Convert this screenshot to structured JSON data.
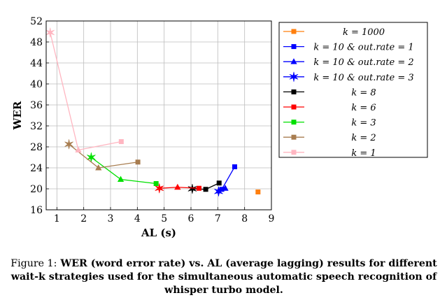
{
  "chart_data": {
    "type": "line",
    "xlabel": "AL (s)",
    "ylabel": "WER",
    "xlim": [
      0.6,
      9
    ],
    "ylim": [
      16,
      52
    ],
    "xticks": [
      1,
      2,
      3,
      4,
      5,
      6,
      7,
      8,
      9
    ],
    "yticks": [
      16,
      20,
      24,
      28,
      32,
      36,
      40,
      44,
      48,
      52
    ],
    "grid": true,
    "legend_position": "right-outside",
    "series": [
      {
        "name": "k = 1000",
        "color": "#ff7f0e",
        "marker": "square",
        "points": [
          [
            8.5,
            19.4
          ]
        ]
      },
      {
        "name": "k = 10 & out.rate = 1",
        "color": "#0000ff",
        "marker": "square",
        "points": [
          [
            7.63,
            24.2
          ],
          [
            7.15,
            19.9
          ]
        ]
      },
      {
        "name": "k = 10 & out.rate = 2",
        "color": "#0000ff",
        "marker": "triangle",
        "points": [
          [
            7.28,
            20.1
          ],
          [
            7.03,
            19.6
          ]
        ]
      },
      {
        "name": "k = 10 & out.rate = 3",
        "color": "#0000ff",
        "marker": "star",
        "points": [
          [
            7.03,
            19.5
          ]
        ]
      },
      {
        "name": "k = 8",
        "color": "#000000",
        "marker": "square",
        "points": [
          [
            7.05,
            21.1
          ],
          [
            6.55,
            19.9
          ],
          [
            6.05,
            20.0
          ]
        ]
      },
      {
        "name": "k = 6",
        "color": "#ff0000",
        "marker": "square",
        "points": [
          [
            6.3,
            20.1
          ],
          [
            5.5,
            20.3
          ],
          [
            4.82,
            20.1
          ]
        ]
      },
      {
        "name": "k = 3",
        "color": "#00e000",
        "marker": "square",
        "points": [
          [
            4.7,
            21.0
          ],
          [
            3.38,
            21.8
          ],
          [
            2.28,
            26.0
          ]
        ]
      },
      {
        "name": "k = 2",
        "color": "#a87d50",
        "marker": "square",
        "points": [
          [
            4.02,
            25.1
          ],
          [
            2.55,
            24.0
          ],
          [
            1.45,
            28.5
          ]
        ]
      },
      {
        "name": "k = 1",
        "color": "#ffb6c1",
        "marker": "square",
        "points": [
          [
            3.4,
            29.0
          ],
          [
            1.8,
            27.4
          ],
          [
            0.75,
            49.8
          ]
        ]
      }
    ]
  },
  "legend": {
    "entries": [
      {
        "main": "k = 1000",
        "color": "#ff7f0e",
        "marker": "square"
      },
      {
        "main": "k = 10 & out.rate = 1",
        "color": "#0000ff",
        "marker": "square"
      },
      {
        "main": "k = 10 & out.rate = 2",
        "color": "#0000ff",
        "marker": "triangle"
      },
      {
        "main": "k = 10 & out.rate = 3",
        "color": "#0000ff",
        "marker": "star"
      },
      {
        "main": "k = 8",
        "color": "#000000",
        "marker": "square"
      },
      {
        "main": "k = 6",
        "color": "#ff0000",
        "marker": "square"
      },
      {
        "main": "k = 3",
        "color": "#00e000",
        "marker": "square"
      },
      {
        "main": "k = 2",
        "color": "#a87d50",
        "marker": "square"
      },
      {
        "main": "k = 1",
        "color": "#ffb6c1",
        "marker": "square"
      }
    ]
  },
  "caption": {
    "prefix": "Figure 1:",
    "text": "WER (word error rate) vs. AL (average lagging) results for different wait-k strategies used for the simultaneous automatic speech recognition of whisper turbo model."
  }
}
